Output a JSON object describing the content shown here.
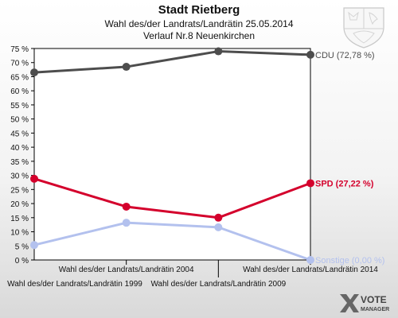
{
  "header": {
    "title": "Stadt Rietberg",
    "subtitle": "Wahl des/der Landrats/Landrätin 25.05.2014",
    "subtitle2": "Verlauf Nr.8 Neuenkirchen"
  },
  "logo": {
    "name": "VOTE MANAGER",
    "line1": "VOTE",
    "line2": "MANAGER"
  },
  "emblem": {
    "icon": "coat-of-arms-icon"
  },
  "chart_data": {
    "type": "line",
    "categories": [
      "Wahl des/der Landrats/Landrätin 1999",
      "Wahl des/der Landrats/Landrätin 2004",
      "Wahl des/der Landrats/Landrätin 2009",
      "Wahl des/der Landrats/Landrätin 2014"
    ],
    "ylim": [
      0,
      75
    ],
    "yticks": [
      0,
      5,
      10,
      15,
      20,
      25,
      30,
      35,
      40,
      45,
      50,
      55,
      60,
      65,
      70,
      75
    ],
    "ytick_suffix": " %",
    "grid": false,
    "series": [
      {
        "name": "CDU",
        "label": "CDU (72,78 %)",
        "color": "#4d4d4d",
        "values": [
          66.5,
          68.5,
          74.0,
          72.78
        ]
      },
      {
        "name": "SPD",
        "label": "SPD (27,22 %)",
        "color": "#d4002c",
        "values": [
          28.8,
          18.9,
          15.0,
          27.22
        ]
      },
      {
        "name": "Sonstige",
        "label": "Sonstige (0,00 %)",
        "color": "#b3c1ee",
        "values": [
          5.3,
          13.2,
          11.6,
          0.0
        ]
      }
    ]
  }
}
